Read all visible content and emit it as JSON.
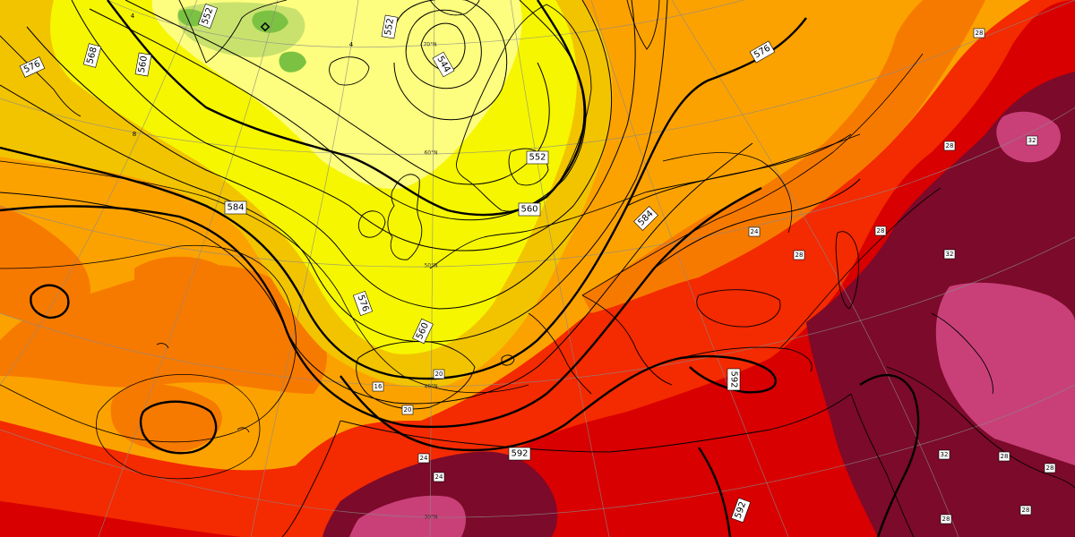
{
  "map": {
    "colors": {
      "temp_neg": "#7cc242",
      "temp_0": "#c9e26e",
      "temp_4": "#fdfd7f",
      "temp_8": "#f6f600",
      "temp_12": "#f2c400",
      "temp_16": "#fca200",
      "temp_20": "#f77a00",
      "temp_24": "#f42a00",
      "temp_28": "#d80000",
      "temp_32": "#7c0a2a",
      "temp_36": "#c94079"
    },
    "geopotential_labels": [
      "544",
      "552",
      "560",
      "568",
      "576",
      "584",
      "592",
      "560",
      "552",
      "560",
      "576",
      "584",
      "592",
      "592",
      "576",
      "560",
      "552",
      "592"
    ],
    "temperature_labels": [
      "4",
      "8",
      "16",
      "20",
      "20",
      "24",
      "24",
      "28",
      "28",
      "28",
      "28",
      "32",
      "32",
      "32",
      "28",
      "28",
      "28",
      "28",
      "24",
      "4"
    ],
    "latitude_labels": [
      "70°N",
      "60°N",
      "50°N",
      "40°N",
      "30°N"
    ]
  }
}
